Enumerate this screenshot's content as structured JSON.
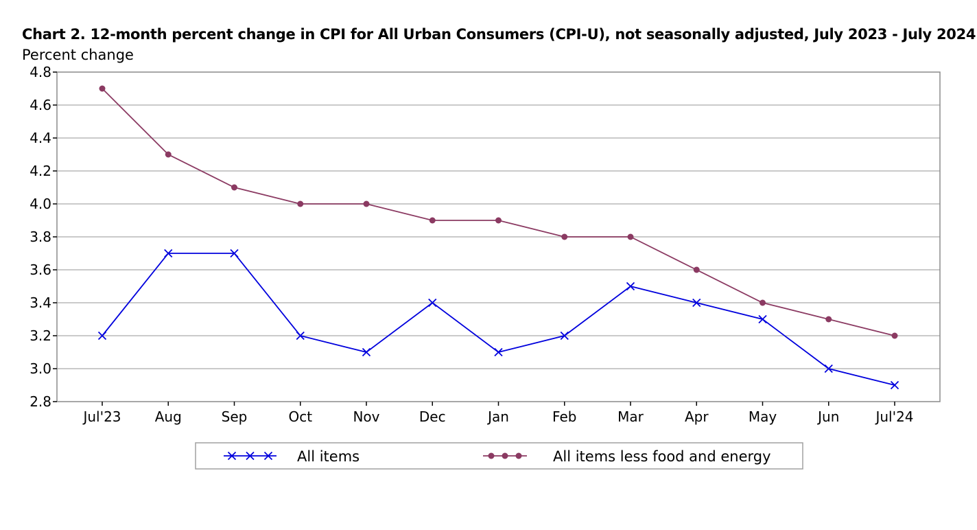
{
  "colors": {
    "all_items": "#0000dd",
    "core": "#8b3a62",
    "grid": "#b8b8b8",
    "frame": "#8a8a8a"
  },
  "chart_data": {
    "type": "line",
    "title": "Chart 2. 12-month percent change in CPI for All Urban Consumers (CPI-U), not seasonally adjusted, July 2023 - July 2024",
    "xlabel": "",
    "ylabel": "Percent change",
    "ylim": [
      2.8,
      4.8
    ],
    "yticks": [
      "2.8",
      "3.0",
      "3.2",
      "3.4",
      "3.6",
      "3.8",
      "4.0",
      "4.2",
      "4.4",
      "4.6",
      "4.8"
    ],
    "grid": true,
    "legend_position": "bottom",
    "categories": [
      "Jul'23",
      "Aug",
      "Sep",
      "Oct",
      "Nov",
      "Dec",
      "Jan",
      "Feb",
      "Mar",
      "Apr",
      "May",
      "Jun",
      "Jul'24"
    ],
    "series": [
      {
        "name": "All items",
        "marker": "x",
        "color_key": "all_items",
        "values": [
          3.2,
          3.7,
          3.7,
          3.2,
          3.1,
          3.4,
          3.1,
          3.2,
          3.5,
          3.4,
          3.3,
          3.0,
          2.9
        ]
      },
      {
        "name": "All items less food and energy",
        "marker": "circle",
        "color_key": "core",
        "values": [
          4.7,
          4.3,
          4.1,
          4.0,
          4.0,
          3.9,
          3.9,
          3.8,
          3.8,
          3.6,
          3.4,
          3.3,
          3.2
        ]
      }
    ]
  }
}
